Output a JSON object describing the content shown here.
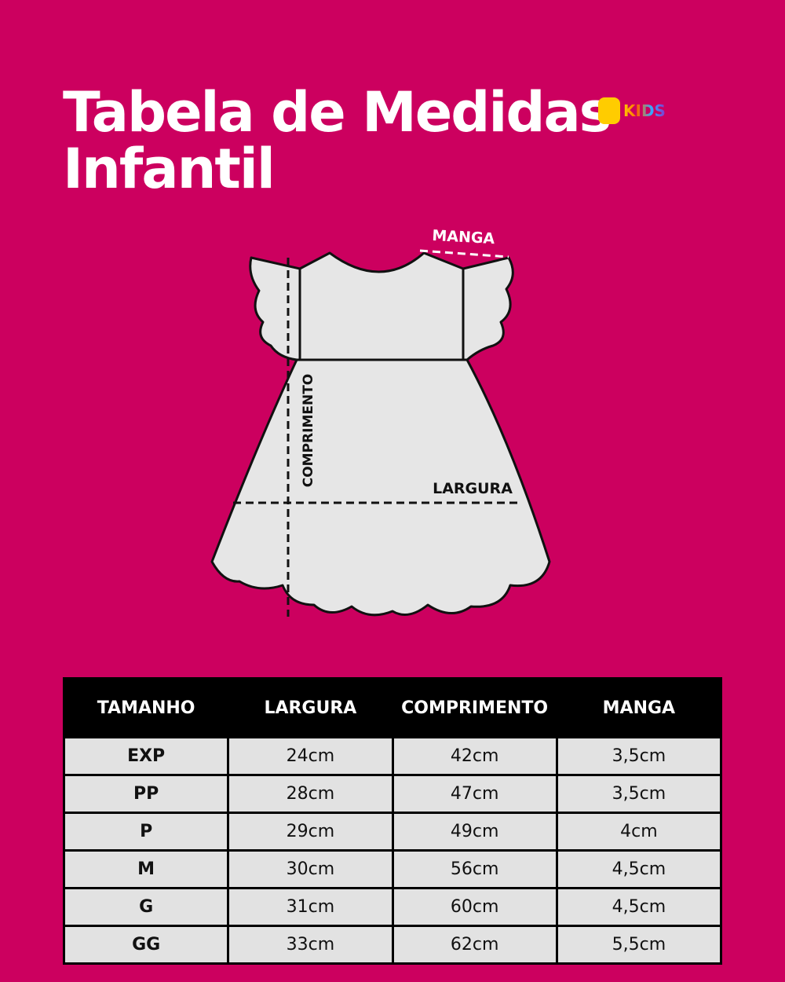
{
  "header": {
    "title_line1": "Tabela de Medidas",
    "title_line2": "Infantil",
    "logo": "KIDS"
  },
  "diagram": {
    "sleeve_label": "MANGA",
    "length_label": "COMPRIMENTO",
    "width_label": "LARGURA"
  },
  "table": {
    "columns": [
      "TAMANHO",
      "LARGURA",
      "COMPRIMENTO",
      "MANGA"
    ],
    "rows": [
      [
        "EXP",
        "24cm",
        "42cm",
        "3,5cm"
      ],
      [
        "PP",
        "28cm",
        "47cm",
        "3,5cm"
      ],
      [
        "P",
        "29cm",
        "49cm",
        "4cm"
      ],
      [
        "M",
        "30cm",
        "56cm",
        "4,5cm"
      ],
      [
        "G",
        "31cm",
        "60cm",
        "4,5cm"
      ],
      [
        "GG",
        "33cm",
        "62cm",
        "5,5cm"
      ]
    ]
  }
}
